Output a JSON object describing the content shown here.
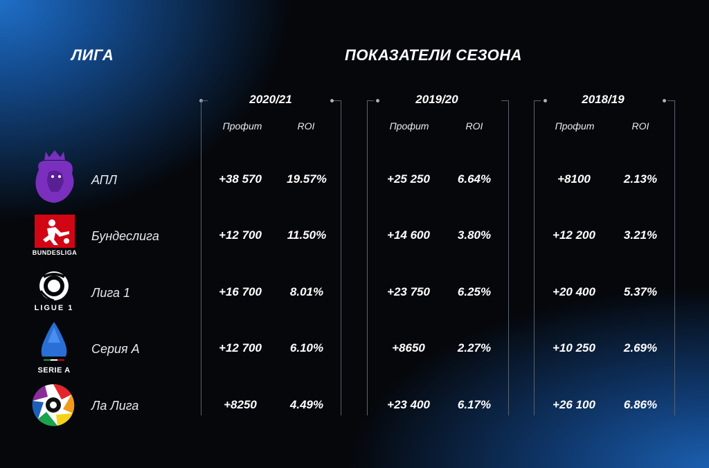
{
  "header": {
    "league": "ЛИГА",
    "stats": "ПОКАЗАТЕЛИ СЕЗОНА"
  },
  "columns": {
    "profit": "Профит",
    "roi": "ROI"
  },
  "seasons": [
    "2020/21",
    "2019/20",
    "2018/19"
  ],
  "leagues": [
    {
      "name": "АПЛ",
      "logo_icon": "premier-league-lion-icon",
      "logo_caption": "",
      "values": [
        [
          "+38 570",
          "19.57%"
        ],
        [
          "+25 250",
          "6.64%"
        ],
        [
          "+8100",
          "2.13%"
        ]
      ]
    },
    {
      "name": "Бундеслига",
      "logo_icon": "bundesliga-icon",
      "logo_caption": "BUNDESLIGA",
      "values": [
        [
          "+12 700",
          "11.50%"
        ],
        [
          "+14 600",
          "3.80%"
        ],
        [
          "+12 200",
          "3.21%"
        ]
      ]
    },
    {
      "name": "Лига 1",
      "logo_icon": "ligue1-icon",
      "logo_caption": "LIGUE 1",
      "values": [
        [
          "+16 700",
          "8.01%"
        ],
        [
          "+23 750",
          "6.25%"
        ],
        [
          "+20 400",
          "5.37%"
        ]
      ]
    },
    {
      "name": "Серия А",
      "logo_icon": "serie-a-icon",
      "logo_caption": "SERIE A",
      "values": [
        [
          "+12 700",
          "6.10%"
        ],
        [
          "+8650",
          "2.27%"
        ],
        [
          "+10 250",
          "2.69%"
        ]
      ]
    },
    {
      "name": "Ла Лига",
      "logo_icon": "laliga-ball-icon",
      "logo_caption": "",
      "values": [
        [
          "+8250",
          "4.49%"
        ],
        [
          "+23 400",
          "6.17%"
        ],
        [
          "+26 100",
          "6.86%"
        ]
      ]
    }
  ],
  "colors": {
    "epl": "#7b2fbf",
    "bundesliga": "#d20515",
    "serie_a": "#2a6fd6",
    "bracket": "#5b6470"
  }
}
